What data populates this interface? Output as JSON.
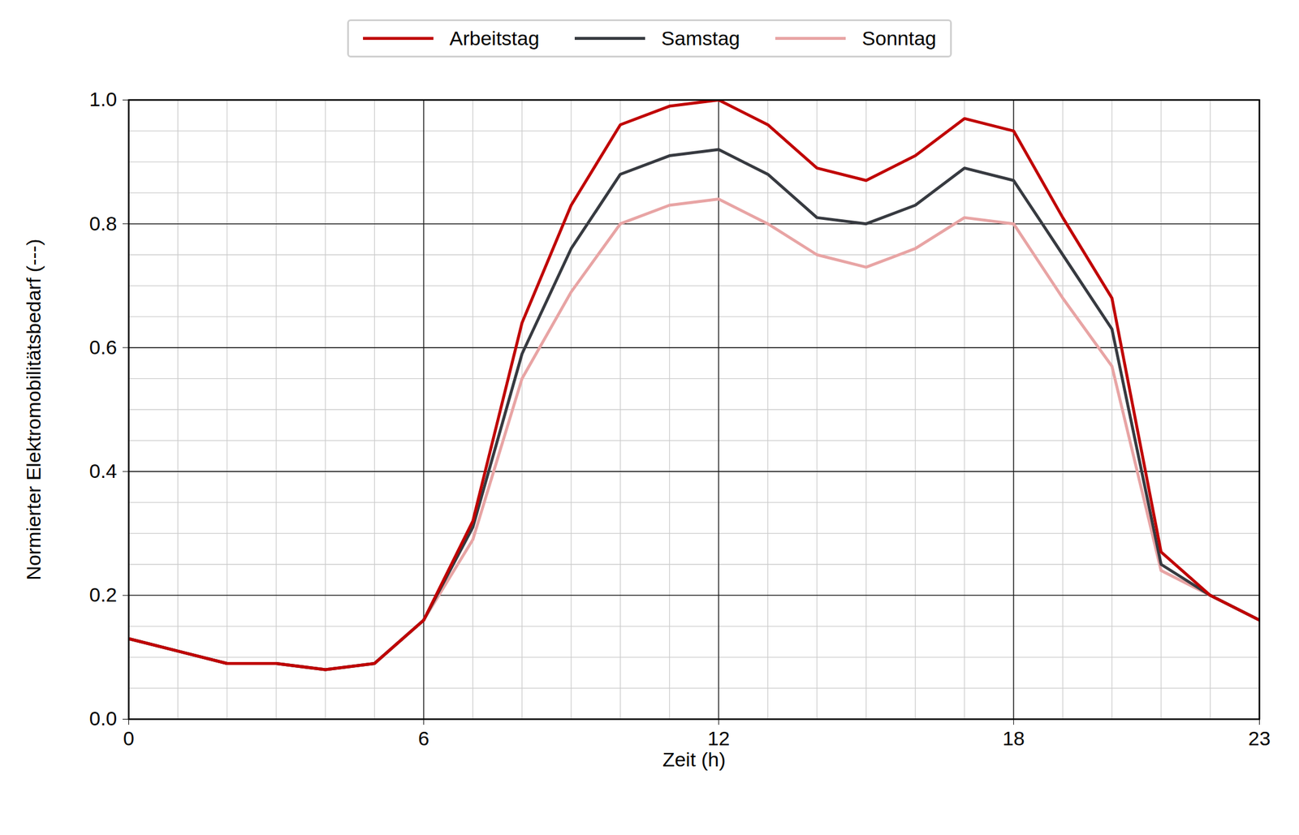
{
  "chart_data": {
    "type": "line",
    "x_label": "Zeit (h)",
    "y_label": "Normierter Elektromobilitätsbedarf (---)",
    "x": [
      0,
      1,
      2,
      3,
      4,
      5,
      6,
      7,
      8,
      9,
      10,
      11,
      12,
      13,
      14,
      15,
      16,
      17,
      18,
      19,
      20,
      21,
      22,
      23
    ],
    "series": [
      {
        "name": "Arbeitstag",
        "color": "#c00000",
        "values": [
          0.13,
          0.11,
          0.09,
          0.09,
          0.08,
          0.09,
          0.16,
          0.32,
          0.64,
          0.83,
          0.96,
          0.99,
          1.0,
          0.96,
          0.89,
          0.87,
          0.91,
          0.97,
          0.95,
          0.81,
          0.68,
          0.27,
          0.2,
          0.16
        ]
      },
      {
        "name": "Samstag",
        "color": "#373a40",
        "values": [
          0.13,
          0.11,
          0.09,
          0.09,
          0.08,
          0.09,
          0.16,
          0.31,
          0.59,
          0.76,
          0.88,
          0.91,
          0.92,
          0.88,
          0.81,
          0.8,
          0.83,
          0.89,
          0.87,
          0.75,
          0.63,
          0.25,
          0.2,
          0.16
        ]
      },
      {
        "name": "Sonntag",
        "color": "#e8a4a4",
        "values": [
          0.13,
          0.11,
          0.09,
          0.09,
          0.08,
          0.09,
          0.16,
          0.29,
          0.55,
          0.69,
          0.8,
          0.83,
          0.84,
          0.8,
          0.75,
          0.73,
          0.76,
          0.81,
          0.8,
          0.68,
          0.57,
          0.24,
          0.2,
          0.16
        ]
      }
    ],
    "xlim": [
      0,
      23
    ],
    "xticks": [
      0,
      6,
      12,
      18,
      23
    ],
    "ylim": [
      0,
      1
    ],
    "yticks": [
      {
        "value": 0,
        "label": "0.0"
      },
      0.2,
      0.4,
      0.6,
      0.8,
      {
        "value": 1,
        "label": "1.0"
      }
    ],
    "grid": true,
    "legend": "top"
  }
}
